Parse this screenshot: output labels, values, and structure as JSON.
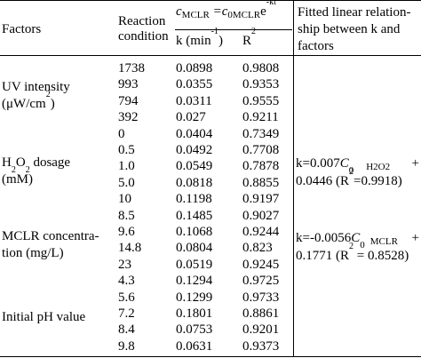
{
  "headers": {
    "factors": "Factors",
    "reaction_condition_1": "Reaction",
    "reaction_condition_2": "condition",
    "equation_c": "c",
    "equation_sub_mclr": "MCLR",
    "equation_eq": " =c",
    "equation_sub_0mclr": "0MCLR",
    "equation_e": "e",
    "equation_exp": "-kt",
    "k_label": "k (min",
    "k_exp": "-1",
    "k_close": ")",
    "r2_label": "R",
    "r2_exp": "2",
    "fitted_1": "Fitted linear relation-",
    "fitted_2": "ship between k and",
    "fitted_3": "factors"
  },
  "factors": {
    "uv_1": "UV intensity",
    "uv_2a": "(μW/cm",
    "uv_2exp": "2",
    "uv_2b": ")",
    "h2o2_1a": "H",
    "h2o2_1sub1": "2",
    "h2o2_1b": "O",
    "h2o2_1sub2": "2",
    "h2o2_1c": " dosage",
    "h2o2_2": "(mM)",
    "mclr_1": "MCLR concentra-",
    "mclr_2": "tion (mg/L)",
    "ph_1": "Initial pH value"
  },
  "rows": [
    {
      "condition": "1738",
      "k": "0.0898",
      "r2": "0.9808"
    },
    {
      "condition": "993",
      "k": "0.0355",
      "r2": "0.9353"
    },
    {
      "condition": "794",
      "k": "0.0311",
      "r2": "0.9555"
    },
    {
      "condition": "392",
      "k": "0.027",
      "r2": "0.9211"
    },
    {
      "condition": "0",
      "k": "0.0404",
      "r2": "0.7349"
    },
    {
      "condition": "0.5",
      "k": "0.0492",
      "r2": "0.7708"
    },
    {
      "condition": "1.0",
      "k": "0.0549",
      "r2": "0.7878"
    },
    {
      "condition": "5.0",
      "k": "0.0818",
      "r2": "0.8855"
    },
    {
      "condition": "10",
      "k": "0.1198",
      "r2": "0.9197"
    },
    {
      "condition": "8.5",
      "k": "0.1485",
      "r2": "0.9027"
    },
    {
      "condition": "9.6",
      "k": "0.1068",
      "r2": "0.9244"
    },
    {
      "condition": "14.8",
      "k": "0.0804",
      "r2": "0.823"
    },
    {
      "condition": "23",
      "k": "0.0519",
      "r2": "0.9245"
    },
    {
      "condition": "4.3",
      "k": "0.1294",
      "r2": "0.9725"
    },
    {
      "condition": "5.6",
      "k": "0.1299",
      "r2": "0.9733"
    },
    {
      "condition": "7.2",
      "k": "0.1801",
      "r2": "0.8861"
    },
    {
      "condition": "8.4",
      "k": "0.0753",
      "r2": "0.9201"
    },
    {
      "condition": "9.8",
      "k": "0.0631",
      "r2": "0.9373"
    }
  ],
  "fitted": {
    "h2o2_line1_a": "k=0.007",
    "h2o2_line1_c": "C",
    "h2o2_line1_sub0": "0",
    "h2o2_line1_cap": "H2O2",
    "h2o2_line1_plus": "+",
    "h2o2_line2": "0.0446 (R",
    "h2o2_line2_exp": "2",
    "h2o2_line2_b": "=0.9918)",
    "mclr_line1_a": "k=-0.0056",
    "mclr_line1_c": "C",
    "mclr_line1_sub0": "0",
    "mclr_line1_cap": "MCLR",
    "mclr_line1_plus": "+",
    "mclr_line2": "0.1771 (R",
    "mclr_line2_exp": "2",
    "mclr_line2_b": " = 0.8528)"
  }
}
